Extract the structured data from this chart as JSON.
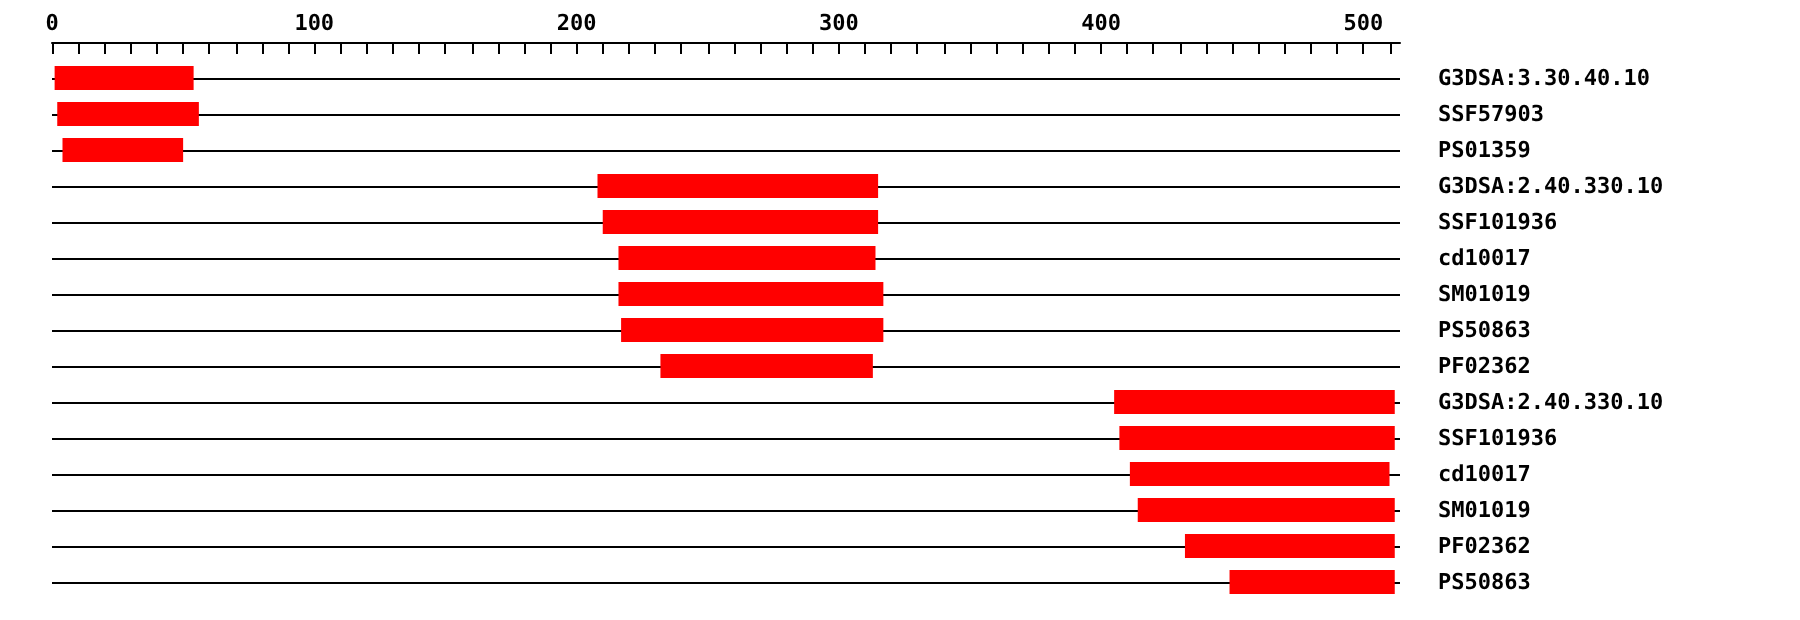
{
  "chart_data": {
    "type": "bar",
    "orientation": "horizontal",
    "categories": [
      "G3DSA:3.30.40.10",
      "SSF57903",
      "PS01359",
      "G3DSA:2.40.330.10",
      "SSF101936",
      "cd10017",
      "SM01019",
      "PS50863",
      "PF02362",
      "G3DSA:2.40.330.10",
      "SSF101936",
      "cd10017",
      "SM01019",
      "PF02362",
      "PS50863"
    ],
    "base": [
      1,
      2,
      4,
      208,
      210,
      216,
      216,
      217,
      232,
      405,
      407,
      411,
      414,
      432,
      449
    ],
    "values": [
      53,
      54,
      46,
      107,
      105,
      98,
      101,
      100,
      81,
      107,
      105,
      99,
      98,
      80,
      63
    ],
    "color": "#ff0000",
    "xlim": [
      0,
      514
    ],
    "xticks": [
      0,
      {
        "value": 10,
        "label": null
      },
      {
        "value": 20,
        "label": null
      },
      {
        "value": 30,
        "label": null
      },
      {
        "value": 40,
        "label": null
      },
      {
        "value": 50,
        "label": null
      },
      {
        "value": 60,
        "label": null
      },
      {
        "value": 70,
        "label": null
      },
      {
        "value": 80,
        "label": null
      },
      {
        "value": 90,
        "label": null
      },
      100,
      {
        "value": 110,
        "label": null
      },
      {
        "value": 120,
        "label": null
      },
      {
        "value": 130,
        "label": null
      },
      {
        "value": 140,
        "label": null
      },
      {
        "value": 150,
        "label": null
      },
      {
        "value": 160,
        "label": null
      },
      {
        "value": 170,
        "label": null
      },
      {
        "value": 180,
        "label": null
      },
      {
        "value": 190,
        "label": null
      },
      200,
      {
        "value": 210,
        "label": null
      },
      {
        "value": 220,
        "label": null
      },
      {
        "value": 230,
        "label": null
      },
      {
        "value": 240,
        "label": null
      },
      {
        "value": 250,
        "label": null
      },
      {
        "value": 260,
        "label": null
      },
      {
        "value": 270,
        "label": null
      },
      {
        "value": 280,
        "label": null
      },
      {
        "value": 290,
        "label": null
      },
      300,
      {
        "value": 310,
        "label": null
      },
      {
        "value": 320,
        "label": null
      },
      {
        "value": 330,
        "label": null
      },
      {
        "value": 340,
        "label": null
      },
      {
        "value": 350,
        "label": null
      },
      {
        "value": 360,
        "label": null
      },
      {
        "value": 370,
        "label": null
      },
      {
        "value": 380,
        "label": null
      },
      {
        "value": 390,
        "label": null
      },
      400,
      {
        "value": 410,
        "label": null
      },
      {
        "value": 420,
        "label": null
      },
      {
        "value": 430,
        "label": null
      },
      {
        "value": 440,
        "label": null
      },
      {
        "value": 450,
        "label": null
      },
      {
        "value": 460,
        "label": null
      },
      {
        "value": 470,
        "label": null
      },
      {
        "value": 480,
        "label": null
      },
      {
        "value": 490,
        "label": null
      },
      500,
      {
        "value": 510,
        "label": null
      }
    ],
    "grid": "y"
  }
}
